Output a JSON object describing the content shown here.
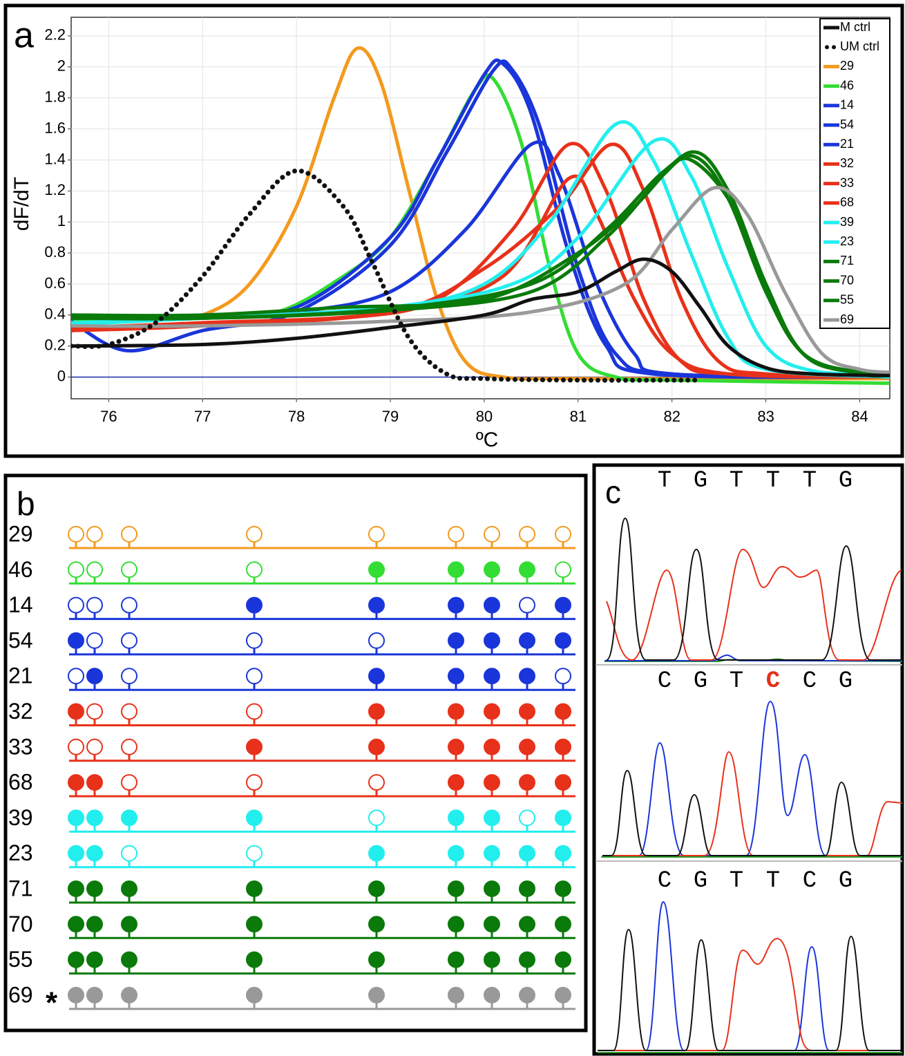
{
  "chart_data": {
    "type": "line",
    "label": "a",
    "y_label": "dF/dT",
    "x_label": "ºC",
    "annotation": "*",
    "xlim": [
      75.6,
      84.32
    ],
    "xticks": [
      76,
      77,
      78,
      79,
      80,
      81,
      82,
      83,
      84
    ],
    "ylim": [
      -0.14,
      2.32
    ],
    "yticks": [
      0,
      0.2,
      0.4,
      0.6,
      0.8,
      1,
      1.2,
      1.4,
      1.6,
      1.8,
      2,
      2.2
    ],
    "grid": true,
    "zero_line_color": "#1a2aa8",
    "legend": "upper right",
    "series": [
      {
        "name": "M ctrl",
        "color": "#111111",
        "style": "solid",
        "x": [
          75.6,
          77,
          78,
          79,
          80,
          80.5,
          81,
          81.4,
          81.7,
          82,
          82.3,
          82.6,
          83,
          83.5,
          84.32
        ],
        "values": [
          0.2,
          0.21,
          0.25,
          0.32,
          0.4,
          0.5,
          0.55,
          0.68,
          0.76,
          0.68,
          0.45,
          0.2,
          0.06,
          0.02,
          0.01
        ]
      },
      {
        "name": "UM ctrl",
        "color": "#111111",
        "style": "dotted",
        "x": [
          75.6,
          76,
          76.5,
          77,
          77.5,
          78,
          78.5,
          78.8,
          79.2,
          79.6,
          80,
          81,
          82.3
        ],
        "values": [
          0.2,
          0.21,
          0.35,
          0.65,
          1.05,
          1.33,
          1.1,
          0.75,
          0.25,
          0.02,
          -0.01,
          -0.02,
          -0.02
        ]
      },
      {
        "name": "29",
        "color": "#f39a1e",
        "style": "solid",
        "x": [
          75.6,
          76.5,
          77,
          77.5,
          78,
          78.4,
          78.65,
          78.9,
          79.2,
          79.5,
          79.8,
          80.2,
          81,
          84.32
        ],
        "values": [
          0.35,
          0.37,
          0.4,
          0.6,
          1.1,
          1.8,
          2.12,
          1.9,
          1.2,
          0.5,
          0.1,
          0,
          -0.01,
          -0.01
        ]
      },
      {
        "name": "46",
        "color": "#33dd33",
        "style": "solid",
        "x": [
          75.6,
          77,
          77.8,
          78.5,
          79,
          79.5,
          79.9,
          80.1,
          80.4,
          80.7,
          81,
          81.4,
          82,
          84.32
        ],
        "values": [
          0.37,
          0.38,
          0.42,
          0.65,
          0.9,
          1.4,
          1.85,
          1.92,
          1.5,
          0.7,
          0.15,
          0,
          -0.02,
          -0.04
        ]
      },
      {
        "name": "14",
        "color": "#1a35d9",
        "style": "solid",
        "x": [
          75.6,
          77,
          78,
          79,
          79.5,
          80,
          80.2,
          80.5,
          80.9,
          81.3,
          81.8,
          84.32
        ],
        "values": [
          0.38,
          0.4,
          0.45,
          0.9,
          1.4,
          1.95,
          2.02,
          1.7,
          0.8,
          0.2,
          0.02,
          0
        ]
      },
      {
        "name": "54",
        "color": "#1a35d9",
        "style": "solid",
        "x": [
          75.6,
          76.2,
          77,
          78,
          79,
          79.6,
          80.1,
          80.3,
          80.6,
          81,
          81.4,
          82,
          84.32
        ],
        "values": [
          0.36,
          0.17,
          0.3,
          0.42,
          0.85,
          1.45,
          1.98,
          1.98,
          1.6,
          0.7,
          0.15,
          0.02,
          0
        ]
      },
      {
        "name": "21",
        "color": "#1a35d9",
        "style": "solid",
        "x": [
          75.6,
          77,
          78,
          79,
          79.8,
          80.5,
          80.8,
          81.2,
          81.6,
          82,
          84.32
        ],
        "values": [
          0.38,
          0.38,
          0.42,
          0.55,
          0.95,
          1.5,
          1.3,
          0.6,
          0.15,
          0.02,
          0
        ]
      },
      {
        "name": "32",
        "color": "#e8311a",
        "style": "solid",
        "x": [
          75.6,
          77,
          78.5,
          79.5,
          80.3,
          80.9,
          81.3,
          81.7,
          82.1,
          82.6,
          84.32
        ],
        "values": [
          0.3,
          0.34,
          0.38,
          0.5,
          0.95,
          1.5,
          1.2,
          0.5,
          0.1,
          0.02,
          0
        ]
      },
      {
        "name": "33",
        "color": "#e8311a",
        "style": "solid",
        "x": [
          75.6,
          77,
          79,
          80,
          80.8,
          81.35,
          81.7,
          82.1,
          82.5,
          83,
          84.32
        ],
        "values": [
          0.32,
          0.35,
          0.42,
          0.7,
          1.1,
          1.5,
          1.2,
          0.5,
          0.1,
          0.02,
          0
        ]
      },
      {
        "name": "68",
        "color": "#e8311a",
        "style": "solid",
        "x": [
          75.6,
          77,
          79,
          80.2,
          80.9,
          81.2,
          81.6,
          82,
          82.6,
          84.32
        ],
        "values": [
          0.3,
          0.33,
          0.42,
          0.65,
          1.28,
          1.05,
          0.5,
          0.15,
          0.02,
          0
        ]
      },
      {
        "name": "39",
        "color": "#22eeee",
        "style": "solid",
        "x": [
          75.6,
          77,
          79,
          80,
          80.7,
          81.4,
          81.8,
          82.2,
          82.6,
          83,
          84.32
        ],
        "values": [
          0.34,
          0.38,
          0.45,
          0.6,
          1,
          1.63,
          1.4,
          0.8,
          0.25,
          0.05,
          0
        ]
      },
      {
        "name": "23",
        "color": "#22eeee",
        "style": "solid",
        "x": [
          75.6,
          77,
          79,
          80.3,
          81,
          81.8,
          82.2,
          82.6,
          83,
          83.5,
          84.32
        ],
        "values": [
          0.35,
          0.38,
          0.45,
          0.6,
          0.9,
          1.52,
          1.3,
          0.7,
          0.2,
          0.04,
          0.02
        ]
      },
      {
        "name": "71",
        "color": "#0a7a0a",
        "style": "solid",
        "x": [
          75.6,
          77,
          78.5,
          80,
          81,
          81.6,
          82.2,
          82.6,
          83,
          83.4,
          84,
          84.32
        ],
        "values": [
          0.4,
          0.4,
          0.45,
          0.5,
          0.8,
          1.1,
          1.45,
          1.2,
          0.6,
          0.15,
          0.03,
          0.02
        ]
      },
      {
        "name": "70",
        "color": "#0a7a0a",
        "style": "solid",
        "x": [
          75.6,
          77,
          79,
          80.5,
          81.3,
          81.9,
          82.25,
          82.6,
          83,
          83.4,
          84,
          84.32
        ],
        "values": [
          0.38,
          0.38,
          0.44,
          0.6,
          0.95,
          1.32,
          1.42,
          1.15,
          0.55,
          0.15,
          0.02,
          0.01
        ]
      },
      {
        "name": "55",
        "color": "#0a7a0a",
        "style": "solid",
        "x": [
          75.6,
          77,
          79,
          80.5,
          81.3,
          81.9,
          82.2,
          82.65,
          83.05,
          83.5,
          84.32
        ],
        "values": [
          0.4,
          0.38,
          0.43,
          0.55,
          0.9,
          1.3,
          1.4,
          1.1,
          0.5,
          0.1,
          0.02
        ]
      },
      {
        "name": "69",
        "color": "#999999",
        "style": "solid",
        "x": [
          75.6,
          77,
          79,
          80.5,
          81.5,
          82,
          82.45,
          82.8,
          83.2,
          83.6,
          84,
          84.32
        ],
        "values": [
          0.33,
          0.33,
          0.36,
          0.42,
          0.6,
          0.95,
          1.22,
          1.05,
          0.55,
          0.15,
          0.05,
          0.03
        ]
      }
    ]
  },
  "panel_b": {
    "label": "b",
    "annotation": "*",
    "rows": [
      {
        "name": "29",
        "color": "#f39a1e",
        "methylated": [
          0,
          0,
          0,
          0,
          0,
          0,
          0,
          0,
          0
        ]
      },
      {
        "name": "46",
        "color": "#33dd33",
        "methylated": [
          0,
          0,
          0,
          0,
          1,
          1,
          1,
          1,
          0
        ]
      },
      {
        "name": "14",
        "color": "#1a35d9",
        "methylated": [
          0,
          0,
          0,
          1,
          1,
          1,
          1,
          0,
          1
        ]
      },
      {
        "name": "54",
        "color": "#1a35d9",
        "methylated": [
          1,
          0,
          0,
          0,
          0,
          1,
          1,
          1,
          1
        ]
      },
      {
        "name": "21",
        "color": "#1a35d9",
        "methylated": [
          0,
          1,
          0,
          0,
          1,
          1,
          1,
          1,
          0
        ]
      },
      {
        "name": "32",
        "color": "#e8311a",
        "methylated": [
          1,
          0,
          0,
          0,
          1,
          1,
          1,
          1,
          1
        ]
      },
      {
        "name": "33",
        "color": "#e8311a",
        "methylated": [
          0,
          0,
          0,
          1,
          1,
          1,
          1,
          1,
          1
        ]
      },
      {
        "name": "68",
        "color": "#e8311a",
        "methylated": [
          1,
          1,
          0,
          0,
          0,
          1,
          1,
          1,
          1
        ]
      },
      {
        "name": "39",
        "color": "#22eeee",
        "methylated": [
          1,
          1,
          1,
          1,
          0,
          1,
          1,
          0,
          1
        ]
      },
      {
        "name": "23",
        "color": "#22eeee",
        "methylated": [
          1,
          1,
          0,
          0,
          1,
          1,
          1,
          1,
          1
        ]
      },
      {
        "name": "71",
        "color": "#0a7a0a",
        "methylated": [
          1,
          1,
          1,
          1,
          1,
          1,
          1,
          1,
          1
        ]
      },
      {
        "name": "70",
        "color": "#0a7a0a",
        "methylated": [
          1,
          1,
          1,
          1,
          1,
          1,
          1,
          1,
          1
        ]
      },
      {
        "name": "55",
        "color": "#0a7a0a",
        "methylated": [
          1,
          1,
          1,
          1,
          1,
          1,
          1,
          1,
          1
        ]
      },
      {
        "name": "69",
        "color": "#999999",
        "methylated": [
          1,
          1,
          1,
          1,
          1,
          1,
          1,
          1,
          1
        ]
      }
    ]
  },
  "panel_c": {
    "label": "c",
    "highlight_color": "#e3301a",
    "sequences": [
      {
        "bases": [
          "T",
          "G",
          "T",
          "T",
          "T",
          "G"
        ]
      },
      {
        "bases": [
          "C",
          "G",
          "T",
          "C",
          "C",
          "G"
        ],
        "highlight": 3
      },
      {
        "bases": [
          "C",
          "G",
          "T",
          "T",
          "C",
          "G"
        ]
      }
    ]
  }
}
